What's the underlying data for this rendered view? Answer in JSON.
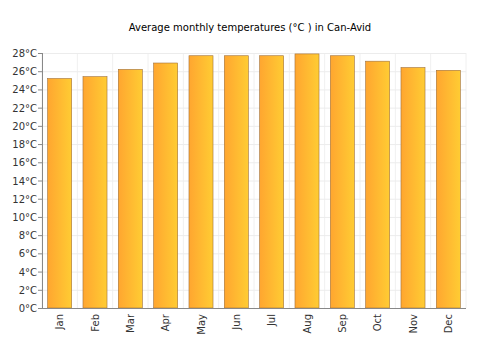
{
  "chart_data": {
    "type": "bar",
    "title": "Average monthly temperatures (°C ) in Can-Avid",
    "categories": [
      "Jan",
      "Feb",
      "Mar",
      "Apr",
      "May",
      "Jun",
      "Jul",
      "Aug",
      "Sep",
      "Oct",
      "Nov",
      "Dec"
    ],
    "values": [
      25.2,
      25.4,
      26.2,
      26.9,
      27.7,
      27.7,
      27.7,
      27.9,
      27.7,
      27.1,
      26.4,
      26.1
    ],
    "color": "#ffa630",
    "ylim": [
      0,
      28
    ],
    "yticks": [
      {
        "value": 0,
        "label": "0°C"
      },
      {
        "value": 2,
        "label": "2°C"
      },
      {
        "value": 4,
        "label": "4°C"
      },
      {
        "value": 6,
        "label": "6°C"
      },
      {
        "value": 8,
        "label": "8°C"
      },
      {
        "value": 10,
        "label": "10°C"
      },
      {
        "value": 12,
        "label": "12°C"
      },
      {
        "value": 14,
        "label": "14°C"
      },
      {
        "value": 16,
        "label": "16°C"
      },
      {
        "value": 18,
        "label": "18°C"
      },
      {
        "value": 20,
        "label": "20°C"
      },
      {
        "value": 22,
        "label": "22°C"
      },
      {
        "value": 24,
        "label": "24°C"
      },
      {
        "value": 26,
        "label": "26°C"
      },
      {
        "value": 28,
        "label": "28°C"
      }
    ],
    "grid": true
  }
}
